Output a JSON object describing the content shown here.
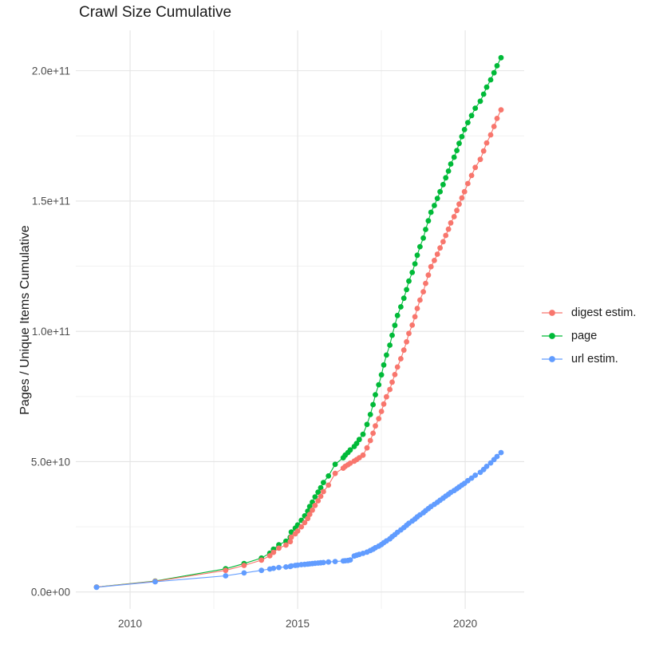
{
  "chart_data": {
    "type": "scatter",
    "style": "line+point",
    "title": "Crawl Size Cumulative",
    "xlabel": "",
    "ylabel": "Pages / Unique Items Cumulative",
    "y_unit": "items (values stored in billions, i.e. 1e9)",
    "grid": true,
    "legend_position": "right",
    "xlim": [
      2008.38,
      2021.76
    ],
    "ylim_billions": [
      -6.5,
      215.5
    ],
    "x_ticks": [
      {
        "v": 2010,
        "label": "2010"
      },
      {
        "v": 2015,
        "label": "2015"
      },
      {
        "v": 2020,
        "label": "2020"
      }
    ],
    "y_ticks": [
      {
        "v": 0,
        "label": "0.0e+00"
      },
      {
        "v": 50,
        "label": "5.0e+10"
      },
      {
        "v": 100,
        "label": "1.0e+11"
      },
      {
        "v": 150,
        "label": "1.5e+11"
      },
      {
        "v": 200,
        "label": "2.0e+11"
      }
    ],
    "x_minor": [
      2012.5,
      2017.5
    ],
    "y_minor_billions": [
      25,
      75,
      125,
      175
    ],
    "colors": {
      "digest": "#F8766D",
      "page": "#00BA38",
      "url": "#619CFF",
      "grid_major": "#E4E4E4",
      "grid_minor": "#F2F2F2",
      "tick_text": "#4D4D4D",
      "text": "#1A1A1A"
    },
    "x": [
      2009.0,
      2010.75,
      2012.85,
      2013.4,
      2013.92,
      2014.17,
      2014.28,
      2014.44,
      2014.65,
      2014.78,
      2014.81,
      2014.93,
      2015.0,
      2015.11,
      2015.21,
      2015.3,
      2015.36,
      2015.44,
      2015.52,
      2015.61,
      2015.69,
      2015.77,
      2015.92,
      2016.12,
      2016.36,
      2016.42,
      2016.5,
      2016.57,
      2016.69,
      2016.76,
      2016.84,
      2016.95,
      2017.07,
      2017.17,
      2017.25,
      2017.32,
      2017.42,
      2017.5,
      2017.57,
      2017.65,
      2017.75,
      2017.82,
      2017.9,
      2017.98,
      2018.08,
      2018.17,
      2018.25,
      2018.32,
      2018.42,
      2018.5,
      2018.57,
      2018.65,
      2018.75,
      2018.82,
      2018.9,
      2018.98,
      2019.08,
      2019.17,
      2019.25,
      2019.34,
      2019.42,
      2019.5,
      2019.57,
      2019.67,
      2019.75,
      2019.82,
      2019.9,
      2019.98,
      2020.08,
      2020.19,
      2020.3,
      2020.45,
      2020.55,
      2020.64,
      2020.76,
      2020.86,
      2020.95,
      2021.07
    ],
    "series": [
      {
        "name": "digest estim.",
        "color": "#F8766D",
        "values": [
          1.9,
          4.1,
          8.3,
          10.2,
          12.2,
          13.9,
          15.2,
          16.8,
          18.0,
          19.3,
          21.0,
          22.3,
          23.4,
          25.0,
          26.6,
          28.2,
          29.8,
          31.4,
          33.2,
          35.0,
          36.7,
          38.5,
          41.0,
          45.5,
          47.5,
          48.2,
          48.8,
          49.4,
          50.2,
          50.8,
          51.5,
          52.5,
          55.3,
          58.1,
          60.9,
          63.7,
          66.5,
          69.3,
          72.1,
          74.9,
          77.7,
          80.5,
          83.4,
          86.3,
          89.5,
          92.8,
          96.0,
          99.2,
          102.4,
          105.6,
          108.8,
          112.0,
          115.2,
          118.4,
          121.6,
          124.8,
          127.2,
          129.6,
          132.0,
          134.4,
          136.8,
          139.2,
          141.6,
          144.0,
          146.4,
          148.8,
          151.2,
          153.6,
          156.7,
          159.8,
          162.9,
          166.0,
          169.2,
          172.3,
          175.4,
          178.6,
          181.7,
          185.0
        ]
      },
      {
        "name": "page",
        "color": "#00BA38",
        "values": [
          1.9,
          4.2,
          8.9,
          10.9,
          13.0,
          14.9,
          16.4,
          18.1,
          19.5,
          21.0,
          23.0,
          24.5,
          25.7,
          27.5,
          29.2,
          31.0,
          32.8,
          34.5,
          36.5,
          38.3,
          40.0,
          42.0,
          44.5,
          49.0,
          51.5,
          52.5,
          53.5,
          54.5,
          55.8,
          57.0,
          58.5,
          60.5,
          64.3,
          68.1,
          71.9,
          75.7,
          79.5,
          83.3,
          87.1,
          90.9,
          94.7,
          98.5,
          102.3,
          106.1,
          109.4,
          112.7,
          116.0,
          119.3,
          122.6,
          125.9,
          129.2,
          132.5,
          135.8,
          139.1,
          142.4,
          145.7,
          148.3,
          151.0,
          153.6,
          156.3,
          158.9,
          161.5,
          164.2,
          166.8,
          169.4,
          172.1,
          174.7,
          177.4,
          180.1,
          182.8,
          185.6,
          188.3,
          191.0,
          193.7,
          196.5,
          199.2,
          201.9,
          205.0
        ]
      },
      {
        "name": "url estim.",
        "color": "#619CFF",
        "values": [
          1.8,
          3.9,
          6.2,
          7.3,
          8.3,
          8.8,
          9.1,
          9.4,
          9.6,
          9.8,
          10.0,
          10.2,
          10.3,
          10.5,
          10.6,
          10.7,
          10.8,
          10.9,
          11.0,
          11.1,
          11.2,
          11.3,
          11.5,
          11.7,
          11.9,
          12.0,
          12.1,
          12.3,
          13.8,
          14.1,
          14.4,
          14.8,
          15.3,
          15.9,
          16.4,
          17.0,
          17.6,
          18.2,
          18.9,
          19.6,
          20.4,
          21.2,
          22.0,
          22.9,
          23.8,
          24.7,
          25.6,
          26.4,
          27.2,
          28.0,
          28.8,
          29.6,
          30.4,
          31.2,
          32.0,
          32.8,
          33.6,
          34.4,
          35.2,
          36.0,
          36.8,
          37.5,
          38.2,
          38.9,
          39.6,
          40.3,
          41.0,
          41.7,
          42.7,
          43.7,
          44.8,
          45.9,
          47.0,
          48.2,
          49.5,
          50.8,
          52.0,
          53.5
        ]
      }
    ]
  }
}
